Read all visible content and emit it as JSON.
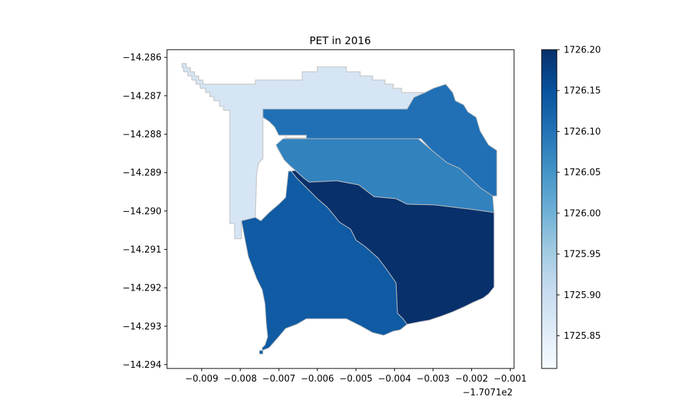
{
  "figure": {
    "title": "PET in 2016",
    "x_offset_label": "−1.7071e2"
  },
  "chart_data": {
    "type": "heatmap",
    "title": "PET in 2016",
    "xlabel": "",
    "ylabel": "",
    "x_ticks": [
      "−0.009",
      "−0.008",
      "−0.007",
      "−0.006",
      "−0.005",
      "−0.004",
      "−0.003",
      "−0.002",
      "−0.001"
    ],
    "x_tick_values": [
      -0.009,
      -0.008,
      -0.007,
      -0.006,
      -0.005,
      -0.004,
      -0.003,
      -0.002,
      -0.001
    ],
    "x_offset": "−1.7071e2",
    "xlim": [
      -0.0099,
      -0.0009
    ],
    "y_ticks": [
      "−14.286",
      "−14.287",
      "−14.288",
      "−14.289",
      "−14.290",
      "−14.291",
      "−14.292",
      "−14.293",
      "−14.294"
    ],
    "y_tick_values": [
      -14.286,
      -14.287,
      -14.288,
      -14.289,
      -14.29,
      -14.291,
      -14.292,
      -14.293,
      -14.294
    ],
    "ylim": [
      -14.2941,
      -14.2858
    ],
    "colorbar": {
      "cmap": "Blues",
      "range": [
        1725.81,
        1726.2
      ],
      "ticks": [
        "1725.85",
        "1725.90",
        "1725.95",
        "1726.00",
        "1726.05",
        "1726.10",
        "1726.15",
        "1726.20"
      ],
      "tick_values": [
        1725.85,
        1725.9,
        1725.95,
        1726.0,
        1726.05,
        1726.1,
        1726.15,
        1726.2
      ],
      "colors": [
        "#f7fbff",
        "#deebf7",
        "#c6dbef",
        "#9ecae1",
        "#6baed6",
        "#4292c6",
        "#2171b5",
        "#08519c",
        "#08306b"
      ]
    },
    "regions": [
      {
        "id": "northwest",
        "value": 1725.89,
        "color": "#d6e5f4"
      },
      {
        "id": "northeast",
        "value": 1726.11,
        "color": "#2170b5"
      },
      {
        "id": "middle",
        "value": 1726.06,
        "color": "#3282be"
      },
      {
        "id": "southeast",
        "value": 1726.2,
        "color": "#08306b"
      },
      {
        "id": "southwest",
        "value": 1726.14,
        "color": "#105ba4"
      }
    ]
  }
}
